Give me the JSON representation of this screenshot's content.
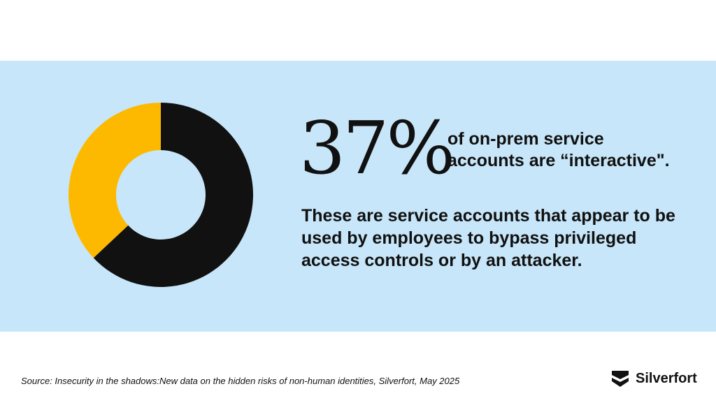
{
  "colors": {
    "background": "#ffffff",
    "band": "#c7e6f9",
    "highlight": "#fdb900",
    "remainder": "#111111",
    "text": "#111111"
  },
  "chart_data": {
    "type": "pie",
    "donut": true,
    "slices": [
      {
        "value": 37,
        "color": "#fdb900"
      },
      {
        "value": 63,
        "color": "#111111"
      }
    ]
  },
  "stat": {
    "value": "37%",
    "caption": "of on-prem service accounts are “interactive\".",
    "description": "These are service accounts that appear to be used by employees to bypass privileged access controls or by an attacker."
  },
  "footer": {
    "source": "Source: Insecurity in the shadows:New data on the hidden risks of non-human identities, Silverfort, May 2025",
    "brand_name": "Silverfort",
    "brand_icon": "silverfort-logo-icon"
  }
}
